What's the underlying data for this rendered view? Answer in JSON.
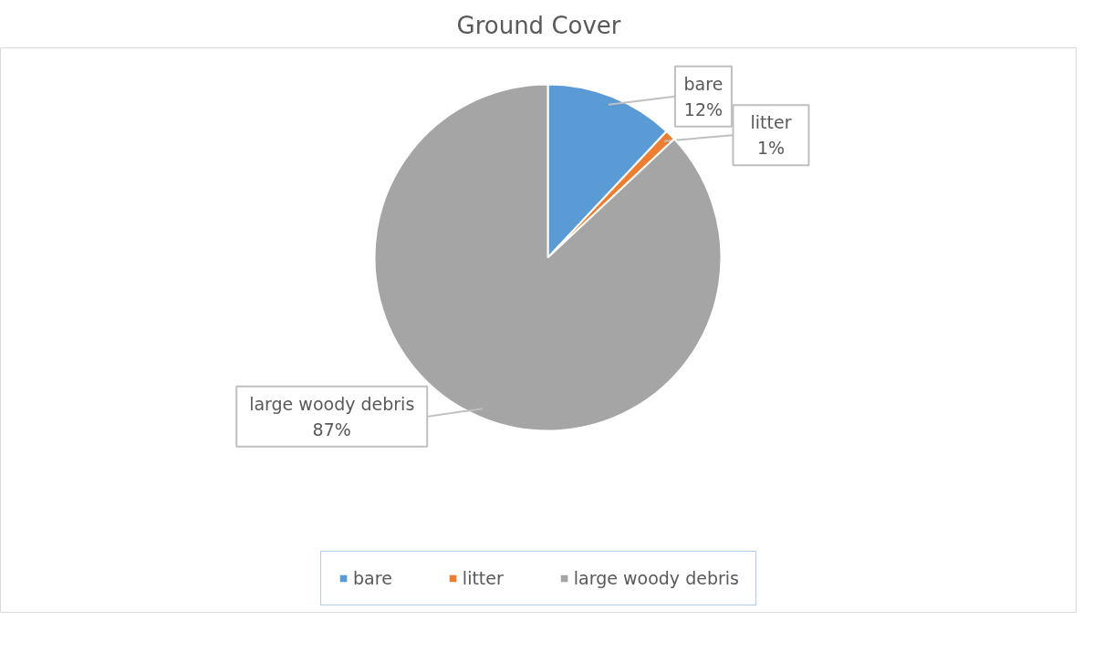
{
  "chart_data": {
    "type": "pie",
    "title": "Ground Cover",
    "categories": [
      "bare",
      "litter",
      "large woody debris"
    ],
    "values": [
      12,
      1,
      87
    ],
    "value_labels": [
      "12%",
      "1%",
      "87%"
    ],
    "colors": [
      "#5b9bd5",
      "#ed7d31",
      "#a5a5a5"
    ],
    "data_labels": true,
    "legend": "bottom"
  }
}
